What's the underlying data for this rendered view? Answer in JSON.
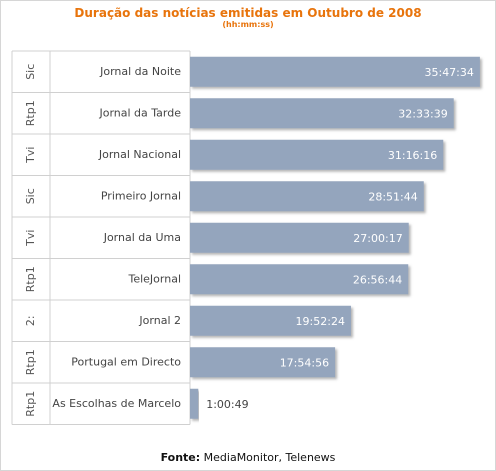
{
  "chart_data": {
    "type": "bar",
    "orientation": "horizontal",
    "title": "Duração das notícias emitidas em Outubro de 2008",
    "subtitle": "(hh:mm:ss)",
    "groups": [
      "Sic",
      "Rtp1",
      "Tvi",
      "Sic",
      "Tvi",
      "Rtp1",
      "2:",
      "Rtp1",
      "Rtp1"
    ],
    "categories": [
      "Jornal da Noite",
      "Jornal da Tarde",
      "Jornal Nacional",
      "Primeiro Jornal",
      "Jornal da Uma",
      "TeleJornal",
      "Jornal 2",
      "Portugal em Directo",
      "As Escolhas de Marcelo"
    ],
    "labels": [
      "35:47:34",
      "32:33:39",
      "31:16:16",
      "28:51:44",
      "27:00:17",
      "26:56:44",
      "19:52:24",
      "17:54:56",
      "1:00:49"
    ],
    "values": [
      35.793,
      32.561,
      31.271,
      28.862,
      27.005,
      26.946,
      19.873,
      17.916,
      1.014
    ],
    "xlim": [
      0,
      36.3
    ],
    "bar_color": "#94a5bd"
  },
  "source": {
    "label": "Fonte:",
    "text": " MediaMonitor, Telenews"
  }
}
